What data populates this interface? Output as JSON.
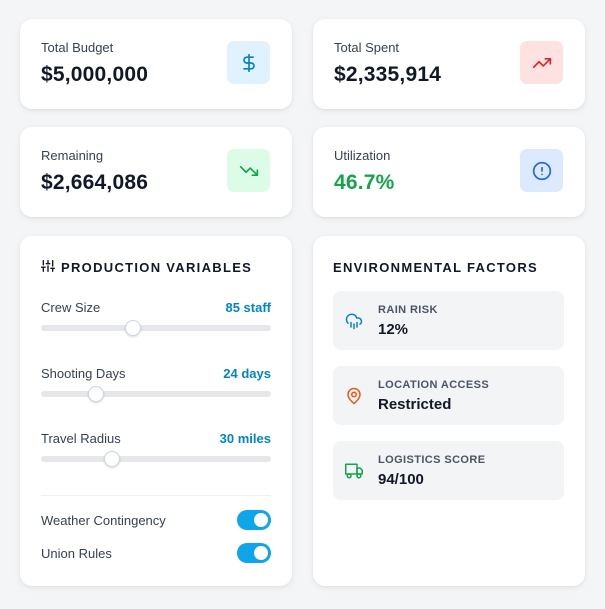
{
  "stats": [
    {
      "label": "Total Budget",
      "value": "$5,000,000",
      "icon": "dollar-icon",
      "icon_bg": "#e0f2fe",
      "icon_color": "#0284c7"
    },
    {
      "label": "Total Spent",
      "value": "$2,335,914",
      "icon": "trending-up-icon",
      "icon_bg": "#fee2e2",
      "icon_color": "#dc2626"
    },
    {
      "label": "Remaining",
      "value": "$2,664,086",
      "icon": "trending-down-icon",
      "icon_bg": "#dcfce7",
      "icon_color": "#16a34a"
    },
    {
      "label": "Utilization",
      "value": "46.7%",
      "icon": "alert-circle-icon",
      "icon_bg": "#dbeafe",
      "icon_color": "#2563eb",
      "value_color": "#16a34a"
    }
  ],
  "production": {
    "title": "PRODUCTION VARIABLES",
    "icon": "sliders-icon",
    "sliders": [
      {
        "label": "Crew Size",
        "value": "85 staff",
        "fraction": 0.4
      },
      {
        "label": "Shooting Days",
        "value": "24 days",
        "fraction": 0.24
      },
      {
        "label": "Travel Radius",
        "value": "30 miles",
        "fraction": 0.31
      }
    ],
    "toggles": [
      {
        "label": "Weather Contingency",
        "on": true
      },
      {
        "label": "Union Rules",
        "on": true
      }
    ]
  },
  "environment": {
    "title": "ENVIRONMENTAL FACTORS",
    "items": [
      {
        "label": "RAIN RISK",
        "value": "12%",
        "icon": "cloud-rain-icon",
        "icon_color": "#0284c7"
      },
      {
        "label": "LOCATION ACCESS",
        "value": "Restricted",
        "icon": "map-pin-icon",
        "icon_color": "#ea580c"
      },
      {
        "label": "LOGISTICS SCORE",
        "value": "94/100",
        "icon": "truck-icon",
        "icon_color": "#16a34a"
      }
    ]
  },
  "colors": {
    "accent": "#0284c7",
    "toggle_on": "#0ea5e9",
    "positive": "#16a34a"
  }
}
